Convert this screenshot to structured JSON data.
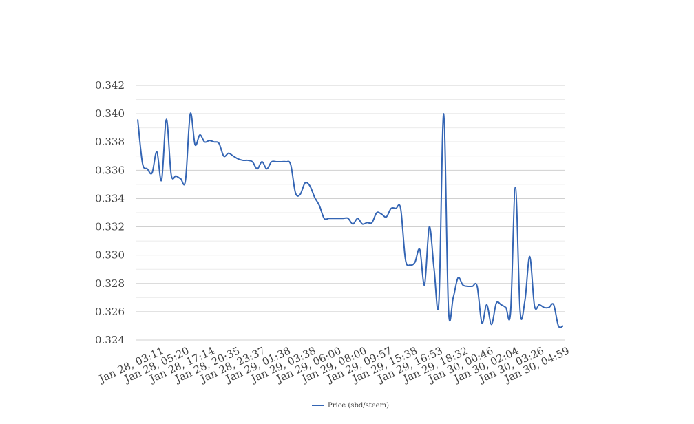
{
  "chart_data": {
    "type": "line",
    "title": "",
    "xlabel": "",
    "ylabel": "",
    "ylim": [
      0.324,
      0.342
    ],
    "y_ticks": [
      "0.324",
      "0.326",
      "0.328",
      "0.330",
      "0.332",
      "0.334",
      "0.336",
      "0.338",
      "0.340",
      "0.342"
    ],
    "x_tick_labels": [
      "Jan 28, 03:11",
      "Jan 28, 05:20",
      "Jan 28, 17:14",
      "Jan 28, 20:35",
      "Jan 28, 23:37",
      "Jan 29, 01:38",
      "Jan 29, 03:38",
      "Jan 29, 06:00",
      "Jan 29, 08:00",
      "Jan 29, 09:57",
      "Jan 29, 15:38",
      "Jan 29, 16:53",
      "Jan 29, 18:32",
      "Jan 30, 00:46",
      "Jan 30, 02:04",
      "Jan 30, 03:26",
      "Jan 30, 04:59"
    ],
    "grid": true,
    "legend_position": "bottom",
    "color": "#3465b4",
    "series": [
      {
        "name": "Price (sbd/steem)",
        "values": [
          0.3396,
          0.3365,
          0.3361,
          0.3358,
          0.3373,
          0.3353,
          0.3396,
          0.3357,
          0.3356,
          0.3354,
          0.3353,
          0.34,
          0.3378,
          0.3385,
          0.338,
          0.3381,
          0.338,
          0.3379,
          0.337,
          0.3372,
          0.337,
          0.3368,
          0.3367,
          0.3367,
          0.3366,
          0.3361,
          0.3366,
          0.3361,
          0.3366,
          0.3366,
          0.3366,
          0.3366,
          0.3364,
          0.3344,
          0.3343,
          0.3351,
          0.3349,
          0.3341,
          0.3335,
          0.3326,
          0.3326,
          0.3326,
          0.3326,
          0.3326,
          0.3326,
          0.3322,
          0.3326,
          0.3322,
          0.3323,
          0.3323,
          0.333,
          0.3329,
          0.3327,
          0.3333,
          0.3333,
          0.3333,
          0.3297,
          0.3293,
          0.3295,
          0.3304,
          0.3279,
          0.332,
          0.329,
          0.3267,
          0.34,
          0.3262,
          0.327,
          0.3284,
          0.3279,
          0.3278,
          0.3278,
          0.3278,
          0.3252,
          0.3265,
          0.3251,
          0.3266,
          0.3265,
          0.3263,
          0.326,
          0.3348,
          0.326,
          0.3268,
          0.3299,
          0.3264,
          0.3265,
          0.3263,
          0.3263,
          0.3265,
          0.325,
          0.325
        ]
      }
    ]
  }
}
